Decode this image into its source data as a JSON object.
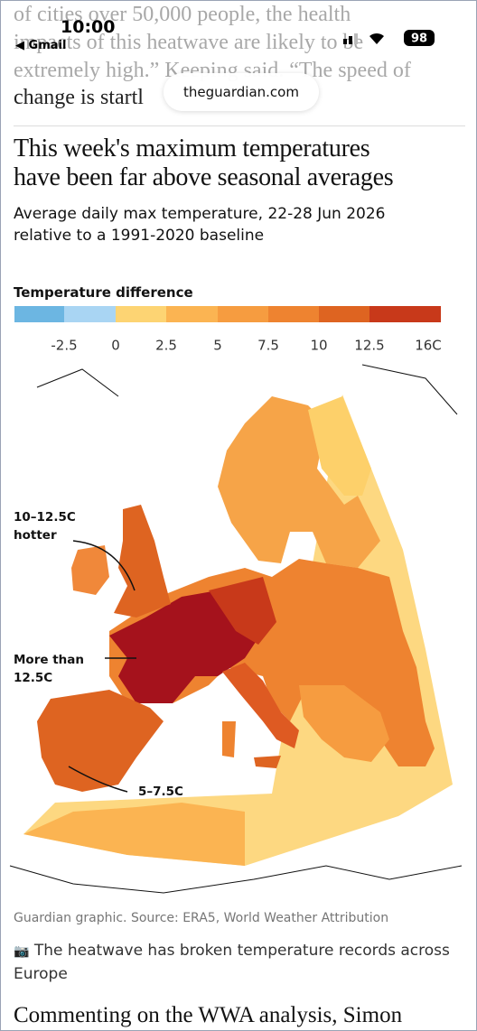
{
  "status_bar": {
    "time": "10:00",
    "back_app": "Gmail",
    "battery": "98"
  },
  "article_background": {
    "lines": [
      "of cities over 50,000 people, the health",
      "impacts of this heatwave are likely to be",
      "extremely high.” Keeping said. “The speed of",
      "change is startl"
    ]
  },
  "url_bar": {
    "domain": "theguardian.com"
  },
  "graphic": {
    "title_lines": [
      "This week's maximum temperatures",
      "have been far above seasonal averages"
    ],
    "subtitle_lines": [
      "Average daily max temperature, 22-28 Jun 2026",
      "relative to a 1991-2020 baseline"
    ],
    "legend": {
      "title": "Temperature difference",
      "colors": [
        "#6cb6e2",
        "#a9d5f3",
        "#fdd473",
        "#fbb452",
        "#f69c40",
        "#ee8330",
        "#de6421",
        "#c8391a",
        "#a5121c"
      ],
      "ticks": [
        "-2.5",
        "0",
        "2.5",
        "5",
        "7.5",
        "10",
        "12.5",
        "16C"
      ]
    },
    "annotations": [
      [
        "10–12.5C",
        "hotter"
      ],
      [
        "More than",
        "12.5C"
      ],
      [
        "5–7.5C"
      ]
    ],
    "source": "Guardian graphic. Source: ERA5, World Weather Attribution"
  },
  "caption": "The heatwave has broken temperature records across Europe",
  "caption_lines": [
    "The heatwave has broken temperature records across",
    "Europe"
  ],
  "next_paragraph": "Commenting on the WWA analysis, Simon"
}
